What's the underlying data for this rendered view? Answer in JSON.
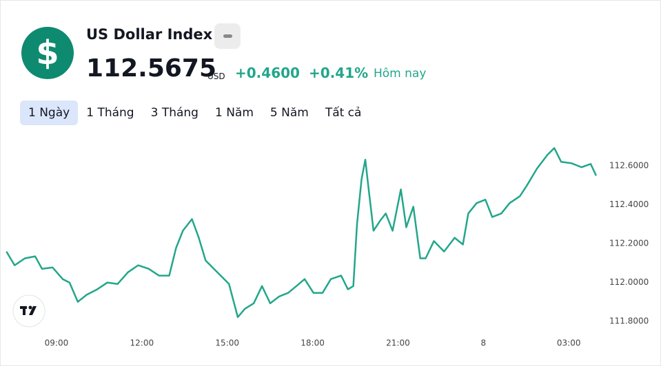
{
  "header": {
    "icon": "$",
    "title": "US Dollar Index",
    "price": "112.5675",
    "currency": "USD",
    "change": "+0.4600",
    "change_percent": "+0.41%",
    "period": "Hôm nay"
  },
  "tabs": [
    "1 Ngày",
    "1 Tháng",
    "3 Tháng",
    "1 Năm",
    "5 Năm",
    "Tất cả"
  ],
  "chart_data": {
    "type": "line",
    "x": [
      7.24,
      7.53,
      7.89,
      8.25,
      8.49,
      8.86,
      9.22,
      9.46,
      9.75,
      10.06,
      10.43,
      10.79,
      11.15,
      11.51,
      11.87,
      12.24,
      12.6,
      12.96,
      13.2,
      13.44,
      13.76,
      14.0,
      14.24,
      14.53,
      14.77,
      15.06,
      15.37,
      15.62,
      15.93,
      16.22,
      16.51,
      16.83,
      17.14,
      17.43,
      17.72,
      18.03,
      18.35,
      18.64,
      19.0,
      19.24,
      19.43,
      19.56,
      19.72,
      19.85,
      19.97,
      20.14,
      20.38,
      20.57,
      20.81,
      21.1,
      21.29,
      21.54,
      21.78,
      21.97,
      22.26,
      22.62,
      22.99,
      23.28,
      23.47,
      23.76,
      24.07,
      24.31,
      24.63,
      24.92,
      25.28,
      25.52,
      25.88,
      26.25,
      26.49,
      26.73,
      27.09,
      27.45,
      27.77,
      27.96
    ],
    "series": [
      {
        "name": "US Dollar Index",
        "color": "#22a68a",
        "values": [
          112.159,
          112.088,
          112.124,
          112.134,
          112.07,
          112.077,
          112.017,
          111.999,
          111.9,
          111.936,
          111.964,
          111.999,
          111.992,
          112.052,
          112.088,
          112.07,
          112.035,
          112.035,
          112.177,
          112.266,
          112.326,
          112.23,
          112.113,
          112.07,
          112.035,
          111.992,
          111.821,
          111.864,
          111.892,
          111.981,
          111.892,
          111.928,
          111.946,
          111.981,
          112.017,
          111.946,
          111.946,
          112.017,
          112.035,
          111.964,
          111.981,
          112.301,
          112.532,
          112.632,
          112.479,
          112.266,
          112.319,
          112.355,
          112.266,
          112.479,
          112.284,
          112.39,
          112.124,
          112.124,
          112.213,
          112.159,
          112.23,
          112.195,
          112.355,
          112.408,
          112.426,
          112.337,
          112.355,
          112.408,
          112.444,
          112.497,
          112.586,
          112.657,
          112.692,
          112.621,
          112.614,
          112.593,
          112.61,
          112.55
        ]
      }
    ],
    "xlim": [
      7.04,
      28.23
    ],
    "xticks": [
      {
        "value": 9,
        "label": "09:00"
      },
      {
        "value": 12,
        "label": "12:00"
      },
      {
        "value": 15,
        "label": "15:00"
      },
      {
        "value": 18,
        "label": "18:00"
      },
      {
        "value": 21,
        "label": "21:00"
      },
      {
        "value": 24,
        "label": "8"
      },
      {
        "value": 27,
        "label": "03:00"
      }
    ],
    "ylim": [
      111.75,
      112.76
    ],
    "yticks": [
      {
        "value": 111.8,
        "label": "111.8000"
      },
      {
        "value": 112,
        "label": "112.0000"
      },
      {
        "value": 112.2,
        "label": "112.2000"
      },
      {
        "value": 112.4,
        "label": "112.4000"
      },
      {
        "value": 112.6,
        "label": "112.6000"
      }
    ]
  }
}
